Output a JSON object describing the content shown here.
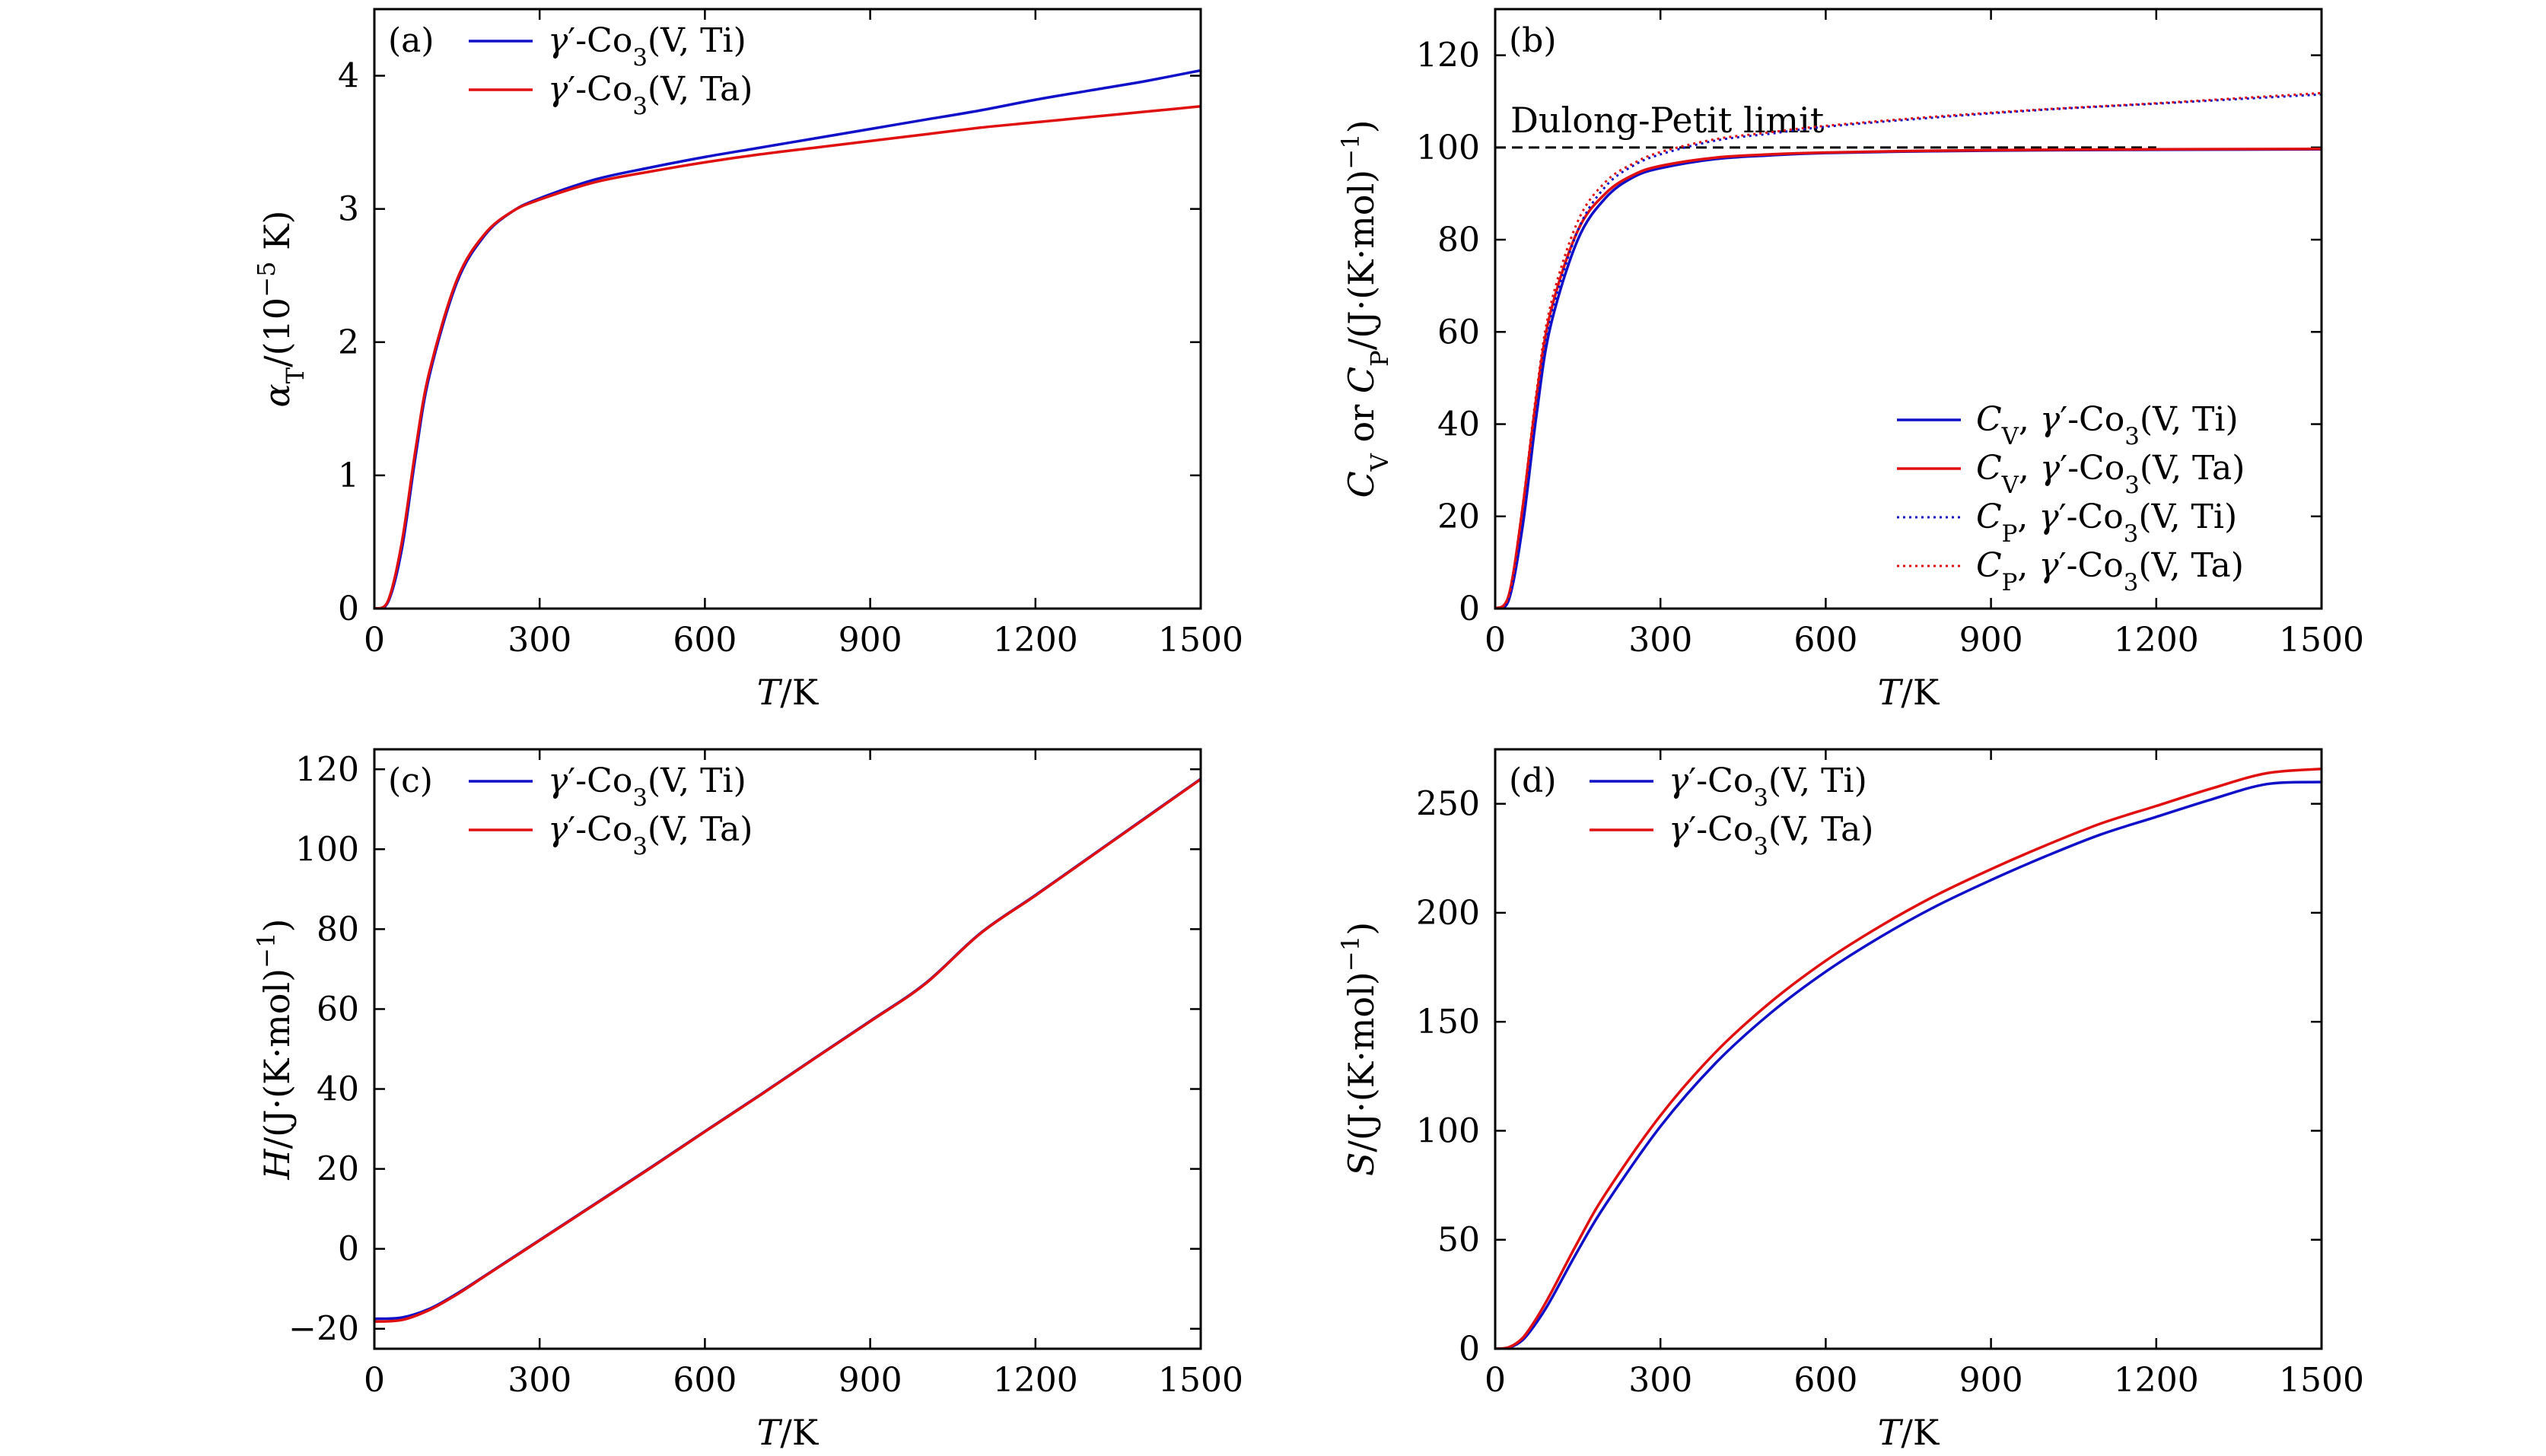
{
  "chart_data": [
    {
      "type": "line",
      "panel_label": "(a)",
      "xlabel": "T/K",
      "ylabel": "α_T/(10^-5 K)",
      "xlim": [
        0,
        1500
      ],
      "ylim": [
        0,
        4.5
      ],
      "xticks": [
        "0",
        "300",
        "600",
        "900",
        "1200",
        "1500"
      ],
      "yticks": [
        "0",
        "1",
        "2",
        "3",
        "4"
      ],
      "legend_position": "top-left",
      "series": [
        {
          "name": "γ′-Co₃(V, Ti)",
          "color": "#1010c8",
          "style": "solid",
          "x": [
            0,
            25,
            50,
            75,
            100,
            150,
            200,
            250,
            300,
            400,
            500,
            600,
            700,
            800,
            900,
            1000,
            1100,
            1200,
            1300,
            1400,
            1500
          ],
          "y": [
            0,
            0.05,
            0.45,
            1.15,
            1.75,
            2.45,
            2.8,
            2.98,
            3.08,
            3.22,
            3.31,
            3.39,
            3.46,
            3.53,
            3.6,
            3.67,
            3.74,
            3.82,
            3.89,
            3.96,
            4.04
          ]
        },
        {
          "name": "γ′-Co₃(V, Ta)",
          "color": "#e01010",
          "style": "solid",
          "x": [
            0,
            25,
            50,
            75,
            100,
            150,
            200,
            250,
            300,
            400,
            500,
            600,
            700,
            800,
            900,
            1000,
            1100,
            1200,
            1300,
            1400,
            1500
          ],
          "y": [
            0,
            0.06,
            0.5,
            1.2,
            1.78,
            2.47,
            2.81,
            2.98,
            3.07,
            3.2,
            3.28,
            3.35,
            3.41,
            3.46,
            3.51,
            3.56,
            3.61,
            3.65,
            3.69,
            3.73,
            3.77
          ]
        }
      ]
    },
    {
      "type": "line",
      "panel_label": "(b)",
      "xlabel": "T/K",
      "ylabel": "C_V or C_P/(J·(K·mol)^-1)",
      "xlim": [
        0,
        1500
      ],
      "ylim": [
        0,
        130
      ],
      "xticks": [
        "0",
        "300",
        "600",
        "900",
        "1200",
        "1500"
      ],
      "yticks": [
        "0",
        "20",
        "40",
        "60",
        "80",
        "100",
        "120"
      ],
      "legend_position": "bottom-right",
      "annotation": "Dulong-Petit limit",
      "reference_line": {
        "y": 100,
        "x": [
          0,
          1200
        ],
        "style": "dashed",
        "color": "#000000"
      },
      "series": [
        {
          "name": "C_V, γ′-Co₃(V, Ti)",
          "color": "#1010c8",
          "style": "solid",
          "x": [
            0,
            25,
            50,
            75,
            100,
            150,
            200,
            250,
            300,
            400,
            500,
            600,
            800,
            1000,
            1200,
            1500
          ],
          "y": [
            0,
            2,
            18,
            42,
            61,
            80,
            89,
            93.5,
            95.5,
            97.5,
            98.3,
            98.8,
            99.2,
            99.4,
            99.5,
            99.6
          ]
        },
        {
          "name": "C_V, γ′-Co₃(V, Ta)",
          "color": "#e01010",
          "style": "solid",
          "x": [
            0,
            25,
            50,
            75,
            100,
            150,
            200,
            250,
            300,
            400,
            500,
            600,
            800,
            1000,
            1200,
            1500
          ],
          "y": [
            0,
            3,
            22,
            46,
            64,
            82,
            90,
            94,
            96,
            97.8,
            98.5,
            98.9,
            99.3,
            99.5,
            99.6,
            99.7
          ]
        },
        {
          "name": "C_P, γ′-Co₃(V, Ti)",
          "color": "#1010c8",
          "style": "dotted",
          "x": [
            0,
            25,
            50,
            75,
            100,
            150,
            200,
            250,
            300,
            400,
            500,
            600,
            800,
            1000,
            1200,
            1500
          ],
          "y": [
            0,
            2,
            18.5,
            43,
            62.5,
            82,
            91.5,
            96,
            98.5,
            101.5,
            103,
            104.5,
            106.5,
            108.2,
            109.5,
            111.5
          ]
        },
        {
          "name": "C_P, γ′-Co₃(V, Ta)",
          "color": "#e01010",
          "style": "dotted",
          "x": [
            0,
            25,
            50,
            75,
            100,
            150,
            200,
            250,
            300,
            400,
            500,
            600,
            800,
            1000,
            1200,
            1500
          ],
          "y": [
            0,
            3,
            22.5,
            47,
            65.5,
            84,
            92.5,
            96.5,
            99,
            101.8,
            103.3,
            104.7,
            106.7,
            108.3,
            109.6,
            111.8
          ]
        }
      ]
    },
    {
      "type": "line",
      "panel_label": "(c)",
      "xlabel": "T/K",
      "ylabel": "H/(J·(K·mol)^-1)",
      "xlim": [
        0,
        1500
      ],
      "ylim": [
        -25,
        125
      ],
      "xticks": [
        "0",
        "300",
        "600",
        "900",
        "1200",
        "1500"
      ],
      "yticks": [
        "−20",
        "0",
        "20",
        "40",
        "60",
        "80",
        "100",
        "120"
      ],
      "legend_position": "top-left",
      "series": [
        {
          "name": "γ′-Co₃(V, Ti)",
          "color": "#1010c8",
          "style": "solid",
          "x": [
            0,
            50,
            100,
            150,
            200,
            250,
            300,
            400,
            500,
            600,
            700,
            800,
            900,
            1000,
            1100,
            1200,
            1300,
            1400,
            1500
          ],
          "y": [
            -17.5,
            -17.2,
            -15,
            -11.2,
            -6.8,
            -2.3,
            2.2,
            11.2,
            20.2,
            29.4,
            38.5,
            47.8,
            57.0,
            66.4,
            79.0,
            88.5,
            98.2,
            107.9,
            117.6
          ]
        },
        {
          "name": "γ′-Co₃(V, Ta)",
          "color": "#e01010",
          "style": "solid",
          "x": [
            0,
            50,
            100,
            150,
            200,
            250,
            300,
            400,
            500,
            600,
            700,
            800,
            900,
            1000,
            1100,
            1200,
            1300,
            1400,
            1500
          ],
          "y": [
            -18.2,
            -17.8,
            -15.3,
            -11.4,
            -6.9,
            -2.4,
            2.1,
            11.1,
            20.1,
            29.3,
            38.4,
            47.7,
            56.9,
            66.3,
            78.9,
            88.4,
            98.1,
            107.8,
            117.5
          ]
        }
      ]
    },
    {
      "type": "line",
      "panel_label": "(d)",
      "xlabel": "T/K",
      "ylabel": "S/(J·(K·mol)^-1)",
      "xlim": [
        0,
        1500
      ],
      "ylim": [
        0,
        275
      ],
      "xticks": [
        "0",
        "300",
        "600",
        "900",
        "1200",
        "1500"
      ],
      "yticks": [
        "0",
        "50",
        "100",
        "150",
        "200",
        "250"
      ],
      "legend_position": "top-left",
      "series": [
        {
          "name": "γ′-Co₃(V, Ti)",
          "color": "#1010c8",
          "style": "solid",
          "x": [
            0,
            25,
            50,
            75,
            100,
            150,
            200,
            300,
            400,
            500,
            600,
            700,
            800,
            900,
            1000,
            1100,
            1200,
            1300,
            1400,
            1500
          ],
          "y": [
            0,
            0.5,
            4,
            12,
            22,
            45,
            66,
            102,
            131,
            154,
            173,
            189,
            203,
            215,
            226,
            236,
            244,
            252,
            259,
            260
          ]
        },
        {
          "name": "γ′-Co₃(V, Ta)",
          "color": "#e01010",
          "style": "solid",
          "x": [
            0,
            25,
            50,
            75,
            100,
            150,
            200,
            300,
            400,
            500,
            600,
            700,
            800,
            900,
            1000,
            1100,
            1200,
            1300,
            1400,
            1500
          ],
          "y": [
            0,
            0.7,
            5,
            14,
            25,
            49,
            71,
            107,
            136,
            159,
            178,
            194,
            208,
            220,
            231,
            241,
            249,
            257,
            264,
            266
          ]
        }
      ]
    }
  ]
}
